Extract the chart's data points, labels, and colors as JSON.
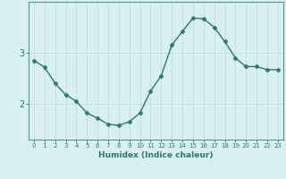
{
  "x": [
    0,
    1,
    2,
    3,
    4,
    5,
    6,
    7,
    8,
    9,
    10,
    11,
    12,
    13,
    14,
    15,
    16,
    17,
    18,
    19,
    20,
    21,
    22,
    23
  ],
  "y": [
    2.85,
    2.72,
    2.4,
    2.18,
    2.05,
    1.82,
    1.72,
    1.6,
    1.58,
    1.65,
    1.82,
    2.25,
    2.55,
    3.15,
    3.42,
    3.68,
    3.67,
    3.5,
    3.22,
    2.9,
    2.73,
    2.73,
    2.67,
    2.67
  ],
  "line_color": "#2a7a6e",
  "marker": "D",
  "marker_size": 2.5,
  "bg_color": "#d8f0f0",
  "grid_color": "#c8dede",
  "xlabel": "Humidex (Indice chaleur)",
  "yticks": [
    2,
    3
  ],
  "ylim": [
    1.3,
    4.0
  ],
  "xlim": [
    -0.5,
    23.5
  ],
  "axis_color": "#4a9a8e",
  "tick_color": "#2a7a6e",
  "font_color": "#2a7a6e",
  "xlabel_fontsize": 6.5,
  "ytick_fontsize": 7,
  "xtick_fontsize": 5
}
